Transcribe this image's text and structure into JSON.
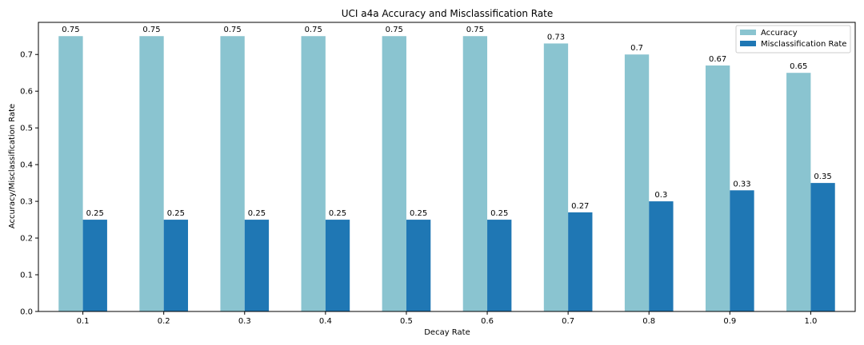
{
  "chart_data": {
    "type": "bar",
    "title": "UCI a4a Accuracy and Misclassification Rate",
    "xlabel": "Decay Rate",
    "ylabel": "Accuracy/Misclassification Rate",
    "categories": [
      "0.1",
      "0.2",
      "0.3",
      "0.4",
      "0.5",
      "0.6",
      "0.7",
      "0.8",
      "0.9",
      "1.0"
    ],
    "series": [
      {
        "name": "Accuracy",
        "color": "#8ac4d0",
        "values": [
          0.75,
          0.75,
          0.75,
          0.75,
          0.75,
          0.75,
          0.73,
          0.7,
          0.67,
          0.65
        ],
        "data_labels": [
          "0.75",
          "0.75",
          "0.75",
          "0.75",
          "0.75",
          "0.75",
          "0.73",
          "0.7",
          "0.67",
          "0.65"
        ]
      },
      {
        "name": "Misclassification Rate",
        "color": "#1f77b4",
        "values": [
          0.25,
          0.25,
          0.25,
          0.25,
          0.25,
          0.25,
          0.27,
          0.3,
          0.33,
          0.35
        ],
        "data_labels": [
          "0.25",
          "0.25",
          "0.25",
          "0.25",
          "0.25",
          "0.25",
          "0.27",
          "0.3",
          "0.33",
          "0.35"
        ]
      }
    ],
    "ylim": [
      0,
      0.7875
    ],
    "yticks": [
      0.0,
      0.1,
      0.2,
      0.3,
      0.4,
      0.5,
      0.6,
      0.7
    ],
    "ytick_labels": [
      "0.0",
      "0.1",
      "0.2",
      "0.3",
      "0.4",
      "0.5",
      "0.6",
      "0.7"
    ],
    "grid": false,
    "legend_position": "top-right"
  }
}
